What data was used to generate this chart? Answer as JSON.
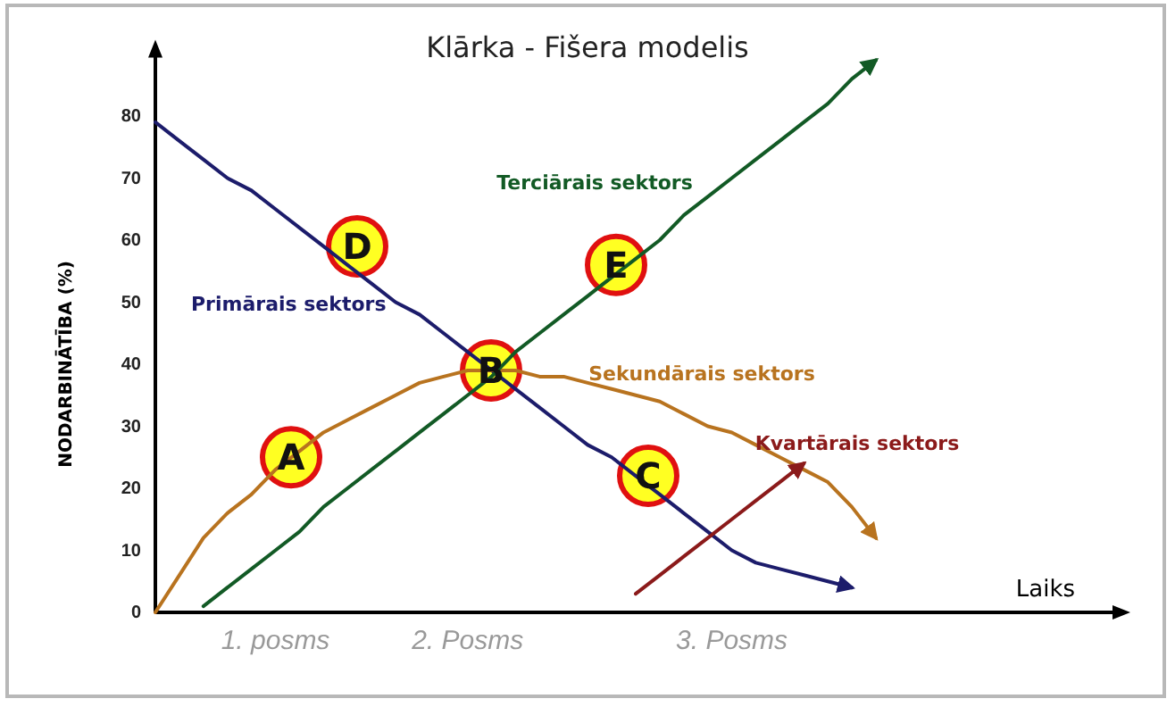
{
  "chart_data": {
    "type": "line",
    "title": "Klārka - Fišera modelis",
    "ylabel": "NODARBINĀTĪBA (%)",
    "xlabel": "Laiks",
    "categories": [
      null,
      null,
      null,
      null,
      null,
      "1. posms",
      null,
      null,
      null,
      null,
      null,
      null,
      null,
      "2. Posms",
      null,
      null,
      null,
      null,
      null,
      null,
      null,
      null,
      null,
      null,
      "3. Posms",
      null,
      null,
      null,
      null,
      null,
      null,
      null,
      null,
      null,
      null,
      null,
      null,
      null,
      null,
      null,
      null
    ],
    "ylim": [
      0,
      90
    ],
    "yticks": [
      0,
      10,
      20,
      30,
      40,
      50,
      60,
      70,
      80
    ],
    "grid": false,
    "legend": false,
    "marker": "none",
    "line_style": "solid",
    "series": [
      {
        "name": "Primārais sektors",
        "color": "#1c1c6b",
        "values": [
          79,
          76,
          73,
          70,
          68,
          65,
          62,
          59,
          56,
          53,
          50,
          48,
          45,
          42,
          39,
          36,
          33,
          30,
          27,
          25,
          22,
          19,
          16,
          13,
          10,
          8,
          7,
          6,
          5,
          4,
          null,
          null,
          null,
          null,
          null,
          null,
          null,
          null,
          null,
          null,
          null
        ]
      },
      {
        "name": "Sekundārais sektors",
        "color": "#b8731f",
        "values": [
          0,
          6,
          12,
          16,
          19,
          23,
          26,
          29,
          31,
          33,
          35,
          37,
          38,
          39,
          39,
          39,
          38,
          38,
          37,
          36,
          35,
          34,
          32,
          30,
          29,
          27,
          25,
          23,
          21,
          17,
          12,
          null,
          null,
          null,
          null,
          null,
          null,
          null,
          null,
          null,
          null
        ]
      },
      {
        "name": "Terciārais sektors",
        "color": "#125a25",
        "values": [
          null,
          null,
          1,
          4,
          7,
          10,
          13,
          17,
          20,
          23,
          26,
          29,
          32,
          35,
          38,
          42,
          45,
          48,
          51,
          54,
          57,
          60,
          64,
          67,
          70,
          73,
          76,
          79,
          82,
          86,
          89,
          null,
          null,
          null,
          null,
          null,
          null,
          null,
          null,
          null,
          null
        ]
      },
      {
        "name": "Kvartārais sektors",
        "color": "#8b1a1a",
        "values": [
          null,
          null,
          null,
          null,
          null,
          null,
          null,
          null,
          null,
          null,
          null,
          null,
          null,
          null,
          null,
          null,
          null,
          null,
          null,
          null,
          3,
          6,
          9,
          12,
          15,
          18,
          21,
          24,
          null,
          null,
          null,
          null,
          null,
          null,
          null,
          null,
          null,
          null,
          null,
          null,
          null
        ]
      }
    ],
    "annotations": [
      {
        "text": "A",
        "y": 25
      },
      {
        "text": "B",
        "y": 39
      },
      {
        "text": "C",
        "y": 22
      },
      {
        "text": "D",
        "y": 59
      },
      {
        "text": "E",
        "y": 56
      }
    ]
  }
}
